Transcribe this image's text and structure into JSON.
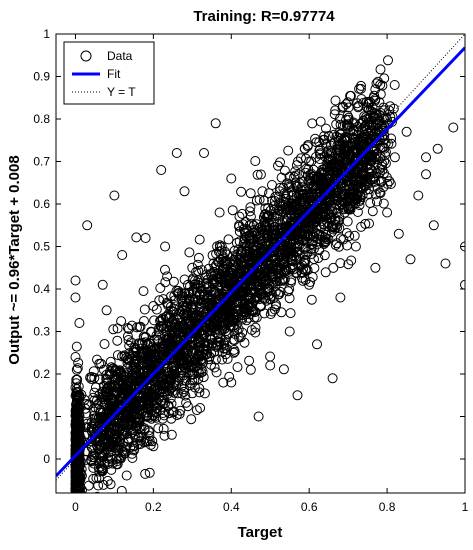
{
  "chart_data": {
    "type": "scatter",
    "title": "Training: R=0.97774",
    "xlabel": "Target",
    "ylabel": "Output ~= 0.96*Target + 0.008",
    "xlim": [
      -0.05,
      1.0
    ],
    "ylim": [
      -0.08,
      1.0
    ],
    "x_ticks": [
      "0",
      "0.2",
      "0.4",
      "0.6",
      "0.8",
      "1"
    ],
    "y_ticks": [
      "0",
      "0.1",
      "0.2",
      "0.3",
      "0.4",
      "0.5",
      "0.6",
      "0.7",
      "0.8",
      "0.9",
      "1"
    ],
    "grid": false,
    "legend_position": "top-left",
    "fit": {
      "slope": 0.96,
      "intercept": 0.008
    },
    "series": [
      {
        "name": "Data",
        "marker": "circle",
        "color": "#000000",
        "points": [
          [
            0.0,
            -0.07
          ],
          [
            0.0,
            -0.03
          ],
          [
            0.0,
            0.02
          ],
          [
            0.0,
            0.08
          ],
          [
            0.01,
            0.15
          ],
          [
            0.0,
            0.24
          ],
          [
            0.01,
            0.32
          ],
          [
            0.0,
            0.38
          ],
          [
            0.0,
            0.42
          ],
          [
            0.05,
            0.05
          ],
          [
            0.08,
            0.35
          ],
          [
            0.1,
            0.62
          ],
          [
            0.1,
            0.17
          ],
          [
            0.12,
            0.48
          ],
          [
            0.15,
            0.02
          ],
          [
            0.18,
            0.52
          ],
          [
            0.2,
            0.03
          ],
          [
            0.2,
            0.36
          ],
          [
            0.22,
            0.68
          ],
          [
            0.25,
            0.11
          ],
          [
            0.26,
            0.72
          ],
          [
            0.28,
            0.63
          ],
          [
            0.3,
            0.22
          ],
          [
            0.3,
            0.45
          ],
          [
            0.32,
            0.12
          ],
          [
            0.33,
            0.72
          ],
          [
            0.35,
            0.36
          ],
          [
            0.36,
            0.79
          ],
          [
            0.4,
            0.18
          ],
          [
            0.4,
            0.66
          ],
          [
            0.42,
            0.55
          ],
          [
            0.45,
            0.21
          ],
          [
            0.48,
            0.63
          ],
          [
            0.5,
            0.22
          ],
          [
            0.52,
            0.69
          ],
          [
            0.55,
            0.3
          ],
          [
            0.58,
            0.44
          ],
          [
            0.6,
            0.7
          ],
          [
            0.62,
            0.27
          ],
          [
            0.65,
            0.76
          ],
          [
            0.68,
            0.38
          ],
          [
            0.7,
            0.78
          ],
          [
            0.72,
            0.5
          ],
          [
            0.75,
            0.69
          ],
          [
            0.78,
            0.81
          ],
          [
            0.8,
            0.58
          ],
          [
            0.82,
            0.71
          ],
          [
            0.85,
            0.77
          ],
          [
            0.86,
            0.47
          ],
          [
            0.88,
            0.62
          ],
          [
            0.9,
            0.67
          ],
          [
            0.9,
            0.71
          ],
          [
            0.92,
            0.55
          ],
          [
            0.93,
            0.73
          ],
          [
            0.95,
            0.46
          ],
          [
            0.97,
            0.78
          ],
          [
            1.0,
            0.5
          ],
          [
            1.0,
            0.41
          ],
          [
            0.83,
            0.53
          ],
          [
            0.77,
            0.45
          ],
          [
            0.66,
            0.19
          ],
          [
            0.57,
            0.15
          ],
          [
            0.53,
            0.54
          ],
          [
            0.47,
            0.1
          ],
          [
            0.43,
            0.41
          ],
          [
            0.37,
            0.58
          ],
          [
            0.27,
            0.28
          ],
          [
            0.23,
            0.5
          ],
          [
            0.17,
            0.26
          ],
          [
            0.13,
            0.09
          ],
          [
            0.07,
            0.41
          ],
          [
            0.03,
            0.55
          ]
        ]
      },
      {
        "name": "Fit",
        "line": "solid",
        "color": "#0000ff"
      },
      {
        "name": "Y = T",
        "line": "dotted",
        "color": "#000000"
      }
    ]
  }
}
